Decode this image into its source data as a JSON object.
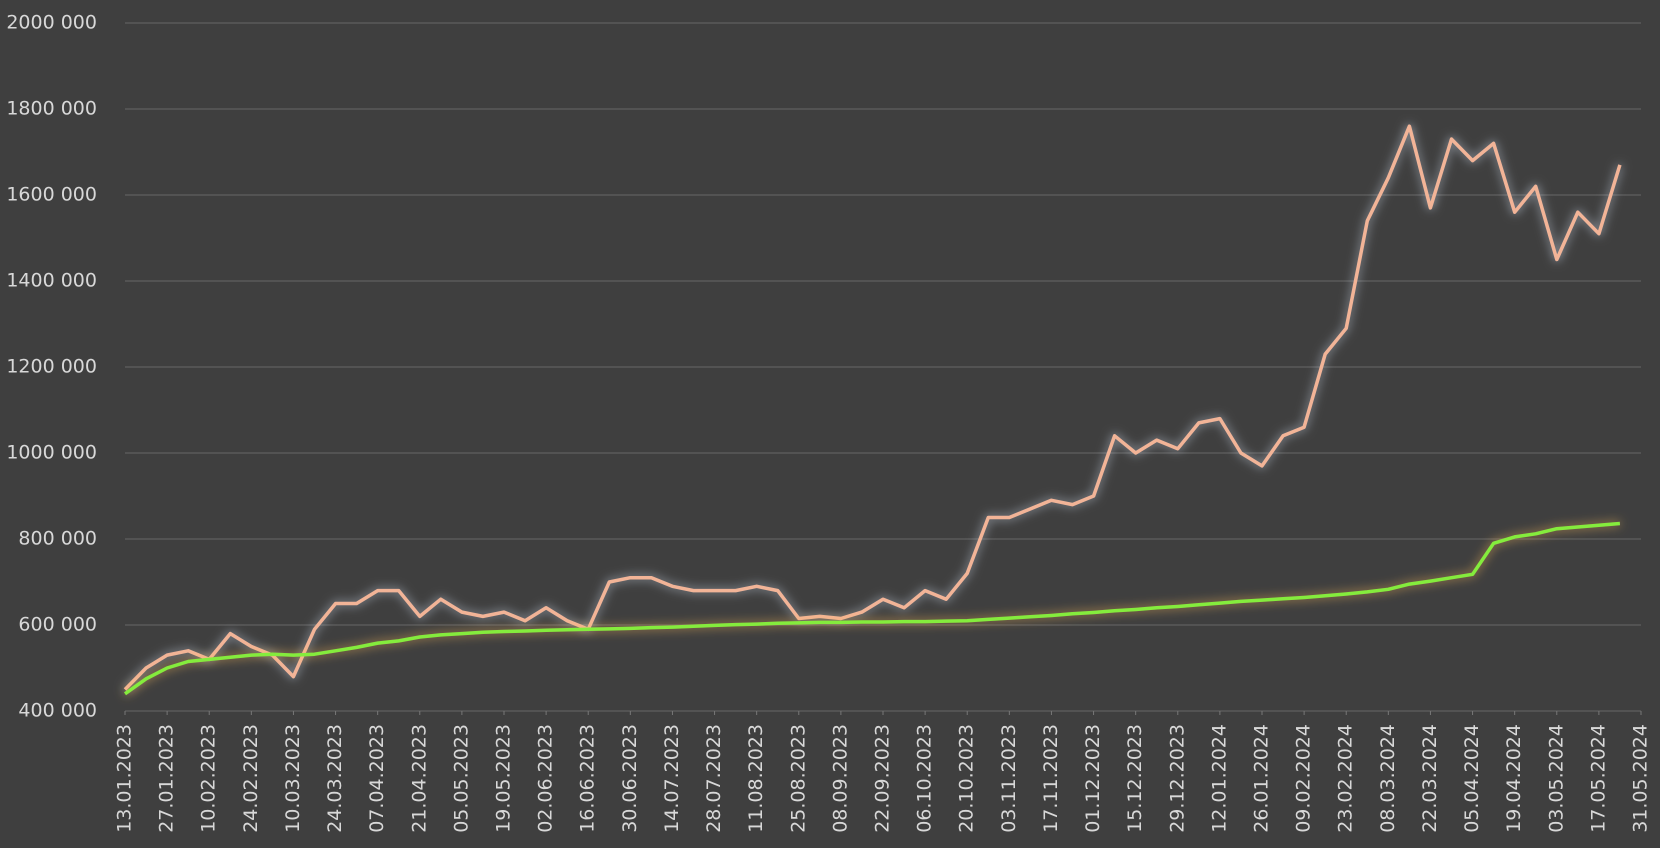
{
  "chart_data": {
    "type": "line",
    "x": [
      "13.01.2023",
      "20.01.2023",
      "27.01.2023",
      "03.02.2023",
      "10.02.2023",
      "17.02.2023",
      "24.02.2023",
      "03.03.2023",
      "10.03.2023",
      "17.03.2023",
      "24.03.2023",
      "31.03.2023",
      "07.04.2023",
      "14.04.2023",
      "21.04.2023",
      "28.04.2023",
      "05.05.2023",
      "12.05.2023",
      "19.05.2023",
      "26.05.2023",
      "02.06.2023",
      "09.06.2023",
      "16.06.2023",
      "23.06.2023",
      "30.06.2023",
      "07.07.2023",
      "14.07.2023",
      "21.07.2023",
      "28.07.2023",
      "04.08.2023",
      "11.08.2023",
      "18.08.2023",
      "25.08.2023",
      "01.09.2023",
      "08.09.2023",
      "15.09.2023",
      "22.09.2023",
      "29.09.2023",
      "06.10.2023",
      "13.10.2023",
      "20.10.2023",
      "27.10.2023",
      "03.11.2023",
      "10.11.2023",
      "17.11.2023",
      "24.11.2023",
      "01.12.2023",
      "08.12.2023",
      "15.12.2023",
      "22.12.2023",
      "29.12.2023",
      "05.01.2024",
      "12.01.2024",
      "19.01.2024",
      "26.01.2024",
      "02.02.2024",
      "09.02.2024",
      "16.02.2024",
      "23.02.2024",
      "01.03.2024",
      "08.03.2024",
      "15.03.2024",
      "22.03.2024",
      "29.03.2024",
      "05.04.2024",
      "12.04.2024",
      "19.04.2024",
      "26.04.2024",
      "03.05.2024",
      "10.05.2024",
      "17.05.2024",
      "24.05.2024"
    ],
    "series": [
      {
        "color": "#f2b497",
        "values": [
          450000,
          500000,
          530000,
          540000,
          520000,
          580000,
          550000,
          530000,
          480000,
          590000,
          650000,
          650000,
          680000,
          680000,
          620000,
          660000,
          630000,
          620000,
          630000,
          610000,
          640000,
          610000,
          590000,
          700000,
          710000,
          710000,
          690000,
          680000,
          680000,
          680000,
          690000,
          680000,
          615000,
          620000,
          615000,
          630000,
          660000,
          640000,
          680000,
          660000,
          720000,
          850000,
          850000,
          870000,
          890000,
          880000,
          900000,
          1040000,
          1000000,
          1030000,
          1010000,
          1070000,
          1080000,
          1000000,
          970000,
          1040000,
          1060000,
          1230000,
          1290000,
          1540000,
          1640000,
          1760000,
          1570000,
          1730000,
          1680000,
          1720000,
          1560000,
          1620000,
          1450000,
          1560000,
          1510000,
          1670000
        ]
      },
      {
        "color": "#84ec3c",
        "values": [
          440000,
          475000,
          500000,
          515000,
          520000,
          525000,
          530000,
          532000,
          530000,
          532000,
          540000,
          548000,
          558000,
          563000,
          572000,
          577000,
          580000,
          583000,
          585000,
          586000,
          588000,
          589000,
          590000,
          591000,
          592000,
          594000,
          595000,
          597000,
          599000,
          601000,
          602000,
          604000,
          605000,
          606000,
          606000,
          607000,
          607000,
          608000,
          608000,
          609000,
          610000,
          613000,
          616000,
          619000,
          622000,
          626000,
          629000,
          633000,
          636000,
          640000,
          643000,
          647000,
          651000,
          655000,
          658000,
          661000,
          664000,
          668000,
          672000,
          677000,
          683000,
          695000,
          702000,
          710000,
          718000,
          790000,
          805000,
          812000,
          824000,
          828000,
          832000,
          836000
        ]
      }
    ],
    "xlim": [
      "13.01.2023",
      "31.05.2024"
    ],
    "xticks": [
      "13.01.2023",
      "27.01.2023",
      "10.02.2023",
      "24.02.2023",
      "10.03.2023",
      "24.03.2023",
      "07.04.2023",
      "21.04.2023",
      "05.05.2023",
      "19.05.2023",
      "02.06.2023",
      "16.06.2023",
      "30.06.2023",
      "14.07.2023",
      "28.07.2023",
      "11.08.2023",
      "25.08.2023",
      "08.09.2023",
      "22.09.2023",
      "06.10.2023",
      "20.10.2023",
      "03.11.2023",
      "17.11.2023",
      "01.12.2023",
      "15.12.2023",
      "29.12.2023",
      "12.01.2024",
      "26.01.2024",
      "09.02.2024",
      "23.02.2024",
      "08.03.2024",
      "22.03.2024",
      "05.04.2024",
      "19.04.2024",
      "03.05.2024",
      "17.05.2024",
      "31.05.2024"
    ],
    "ylim": [
      400000,
      2000000
    ],
    "yticks": [
      {
        "value": 400000,
        "label": "400 000"
      },
      {
        "value": 600000,
        "label": "600 000"
      },
      {
        "value": 800000,
        "label": "800 000"
      },
      {
        "value": 1000000,
        "label": "1000 000"
      },
      {
        "value": 1200000,
        "label": "1200 000"
      },
      {
        "value": 1400000,
        "label": "1400 000"
      },
      {
        "value": 1600000,
        "label": "1600 000"
      },
      {
        "value": 1800000,
        "label": "1800 000"
      },
      {
        "value": 2000000,
        "label": "2000 000"
      }
    ],
    "grid": true
  }
}
